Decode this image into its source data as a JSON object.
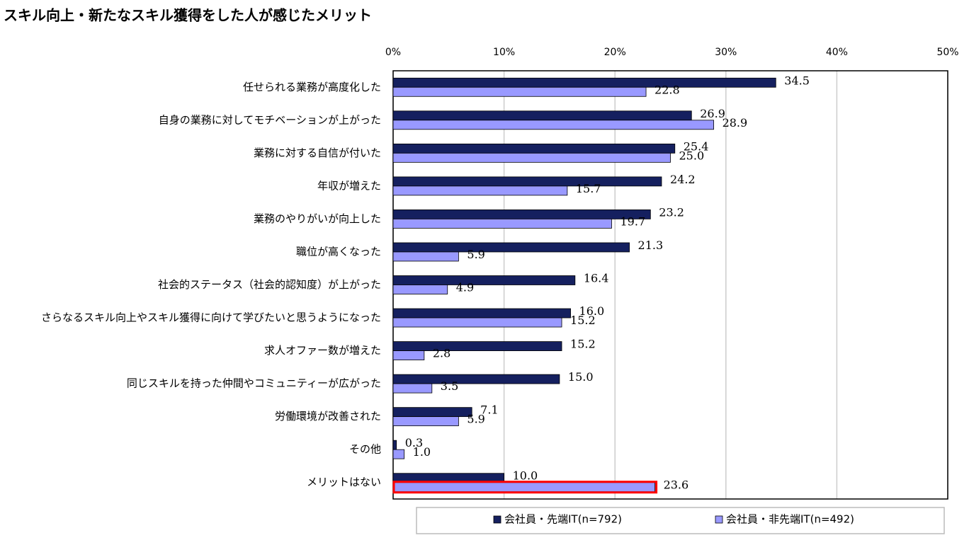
{
  "chart_data": {
    "type": "hbar",
    "title": "スキル向上・新たなスキル獲得をした人が感じたメリット",
    "categories": [
      "任せられる業務が高度化した",
      "自身の業務に対してモチベーションが上がった",
      "業務に対する自信が付いた",
      "年収が増えた",
      "業務のやりがいが向上した",
      "職位が高くなった",
      "社会的ステータス（社会的認知度）が上がった",
      "さらなるスキル向上やスキル獲得に向けて学びたいと思うようになった",
      "求人オファー数が増えた",
      "同じスキルを持った仲間やコミュニティーが広がった",
      "労働環境が改善された",
      "その他",
      "メリットはない"
    ],
    "series": [
      {
        "name": "会社員・先端IT(n=792)",
        "color": "#15205f",
        "values": [
          34.5,
          26.9,
          25.4,
          24.2,
          23.2,
          21.3,
          16.4,
          16.0,
          15.2,
          15.0,
          7.1,
          0.3,
          10.0
        ],
        "value_labels": [
          "34.5",
          "26.9",
          "25.4",
          "24.2",
          "23.2",
          "21.3",
          "16.4",
          "16.0",
          "15.2",
          "15.0",
          "7.1",
          "0.3",
          "10.0"
        ]
      },
      {
        "name": "会社員・非先端IT(n=492)",
        "color": "#9999ff",
        "values": [
          22.8,
          28.9,
          25.0,
          15.7,
          19.7,
          5.9,
          4.9,
          15.2,
          2.8,
          3.5,
          5.9,
          1.0,
          23.6
        ],
        "value_labels": [
          "22.8",
          "28.9",
          "25.0",
          "15.7",
          "19.7",
          "5.9",
          "4.9",
          "15.2",
          "2.8",
          "3.5",
          "5.9",
          "1.0",
          "23.6"
        ]
      }
    ],
    "xlim": [
      0,
      50
    ],
    "xticks": [
      {
        "value": 0,
        "label": "0%"
      },
      {
        "value": 10,
        "label": "10%"
      },
      {
        "value": 20,
        "label": "20%"
      },
      {
        "value": 30,
        "label": "30%"
      },
      {
        "value": 40,
        "label": "40%"
      },
      {
        "value": 50,
        "label": "50%"
      }
    ],
    "grid": true,
    "legend": "bottom",
    "highlight": {
      "series": 1,
      "index": 12,
      "color": "#ff0000"
    }
  }
}
